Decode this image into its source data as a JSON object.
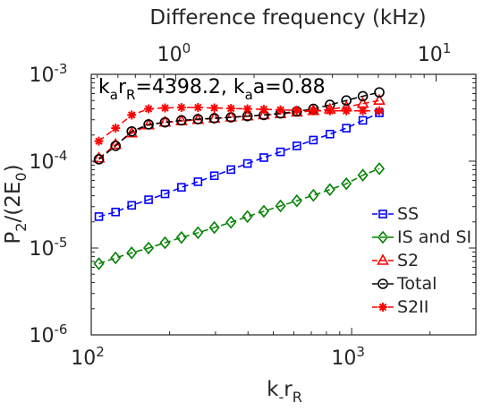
{
  "chart_data": {
    "type": "scatter",
    "xscale": "log",
    "yscale": "log",
    "xlim": [
      100,
      3000
    ],
    "ylim": [
      1e-06,
      0.001
    ],
    "xlabel": {
      "base": "k",
      "sub": "-",
      "base2": "r",
      "sub2": "R"
    },
    "ylabel": {
      "p1": "P",
      "sub": "2",
      "p2": "/(2E",
      "sub2": "0",
      "p3": ")"
    },
    "top_xlabel": "Difference frequency (kHz)",
    "bottom_ticks": [
      {
        "value": 100,
        "base": "10",
        "exp": "2"
      },
      {
        "value": 1000,
        "base": "10",
        "exp": "3"
      }
    ],
    "left_ticks": [
      {
        "value": 1e-06,
        "base": "10",
        "exp": "-6"
      },
      {
        "value": 1e-05,
        "base": "10",
        "exp": "-5"
      },
      {
        "value": 0.0001,
        "base": "10",
        "exp": "-4"
      },
      {
        "value": 0.001,
        "base": "10",
        "exp": "-3"
      }
    ],
    "top_ticks": [
      {
        "kr": 211,
        "base": "10",
        "exp": "0"
      },
      {
        "kr": 2110,
        "base": "10",
        "exp": "1"
      }
    ],
    "annotation": {
      "a": "k",
      "b": "a",
      "c": "r",
      "d": "R",
      "e": "=4398.2, k",
      "f": "a",
      "g": "a=0.88"
    },
    "legend_position": "lower-right",
    "x": [
      107,
      124,
      143,
      166,
      192,
      222,
      257,
      297,
      344,
      398,
      460,
      533,
      616,
      713,
      825,
      954,
      1104,
      1277
    ],
    "series": [
      {
        "name": "SS",
        "color": "#0000ff",
        "marker": "square",
        "values": [
          2.3e-05,
          2.6e-05,
          3.1e-05,
          3.6e-05,
          4.2e-05,
          5e-05,
          5.8e-05,
          6.8e-05,
          8e-05,
          9.4e-05,
          0.00011,
          0.000128,
          0.00015,
          0.000175,
          0.000205,
          0.00024,
          0.000295,
          0.00036
        ]
      },
      {
        "name": "IS and SI",
        "color": "#008000",
        "marker": "diamond",
        "values": [
          6.6e-06,
          7.7e-06,
          8.8e-06,
          1e-05,
          1.15e-05,
          1.32e-05,
          1.5e-05,
          1.72e-05,
          1.98e-05,
          2.3e-05,
          2.65e-05,
          3.05e-05,
          3.5e-05,
          4.05e-05,
          4.7e-05,
          5.5e-05,
          6.9e-05,
          8.2e-05
        ]
      },
      {
        "name": "S2",
        "color": "#ff0000",
        "marker": "triangle",
        "values": [
          0.000108,
          0.000155,
          0.00021,
          0.00026,
          0.00028,
          0.00029,
          0.0003,
          0.00031,
          0.00032,
          0.00033,
          0.00034,
          0.00035,
          0.000365,
          0.00038,
          0.000395,
          0.00042,
          0.00046,
          0.0005
        ]
      },
      {
        "name": "Total",
        "color": "#000000",
        "marker": "circle",
        "values": [
          0.000105,
          0.00015,
          0.00022,
          0.000265,
          0.00028,
          0.000295,
          0.000305,
          0.000312,
          0.00032,
          0.00033,
          0.00034,
          0.000355,
          0.000375,
          0.0004,
          0.000445,
          0.0005,
          0.00056,
          0.00062
        ]
      },
      {
        "name": "S2II",
        "color": "#ff0000",
        "marker": "star",
        "values": [
          0.00017,
          0.00024,
          0.00034,
          0.0004,
          0.00041,
          0.000415,
          0.000415,
          0.00041,
          0.000405,
          0.0004,
          0.000395,
          0.00039,
          0.000385,
          0.00038,
          0.00038,
          0.00038,
          0.00038,
          0.00038
        ]
      }
    ]
  }
}
